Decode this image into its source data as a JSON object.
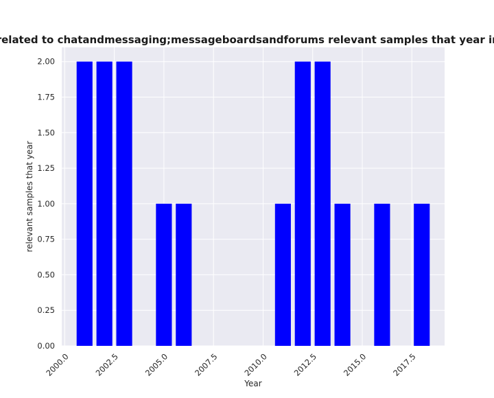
{
  "chart_data": {
    "type": "bar",
    "title": "are related to chatandmessaging;messageboardsandforums relevant samples that year in priva",
    "xlabel": "Year",
    "ylabel": "relevant samples that year",
    "x": [
      2001,
      2002,
      2003,
      2005,
      2006,
      2011,
      2012,
      2013,
      2014,
      2016,
      2018
    ],
    "values": [
      2,
      2,
      2,
      1,
      1,
      1,
      2,
      2,
      1,
      1,
      1
    ],
    "xlim": [
      1999.85,
      2019.15
    ],
    "ylim": [
      0,
      2.1
    ],
    "x_ticks": [
      2000.0,
      2002.5,
      2005.0,
      2007.5,
      2010.0,
      2012.5,
      2015.0,
      2017.5
    ],
    "x_tick_labels": [
      "2000.0",
      "2002.5",
      "2005.0",
      "2007.5",
      "2010.0",
      "2012.5",
      "2015.0",
      "2017.5"
    ],
    "y_ticks": [
      0,
      0.25,
      0.5,
      0.75,
      1.0,
      1.25,
      1.5,
      1.75,
      2.0
    ],
    "y_tick_labels": [
      "0.00",
      "0.25",
      "0.50",
      "0.75",
      "1.00",
      "1.25",
      "1.50",
      "1.75",
      "2.00"
    ],
    "bar_width": 0.8,
    "grid": true,
    "colors": {
      "bar": "#0000ff",
      "plot_background": "#eaeaf2",
      "grid": "#ffffff"
    }
  }
}
